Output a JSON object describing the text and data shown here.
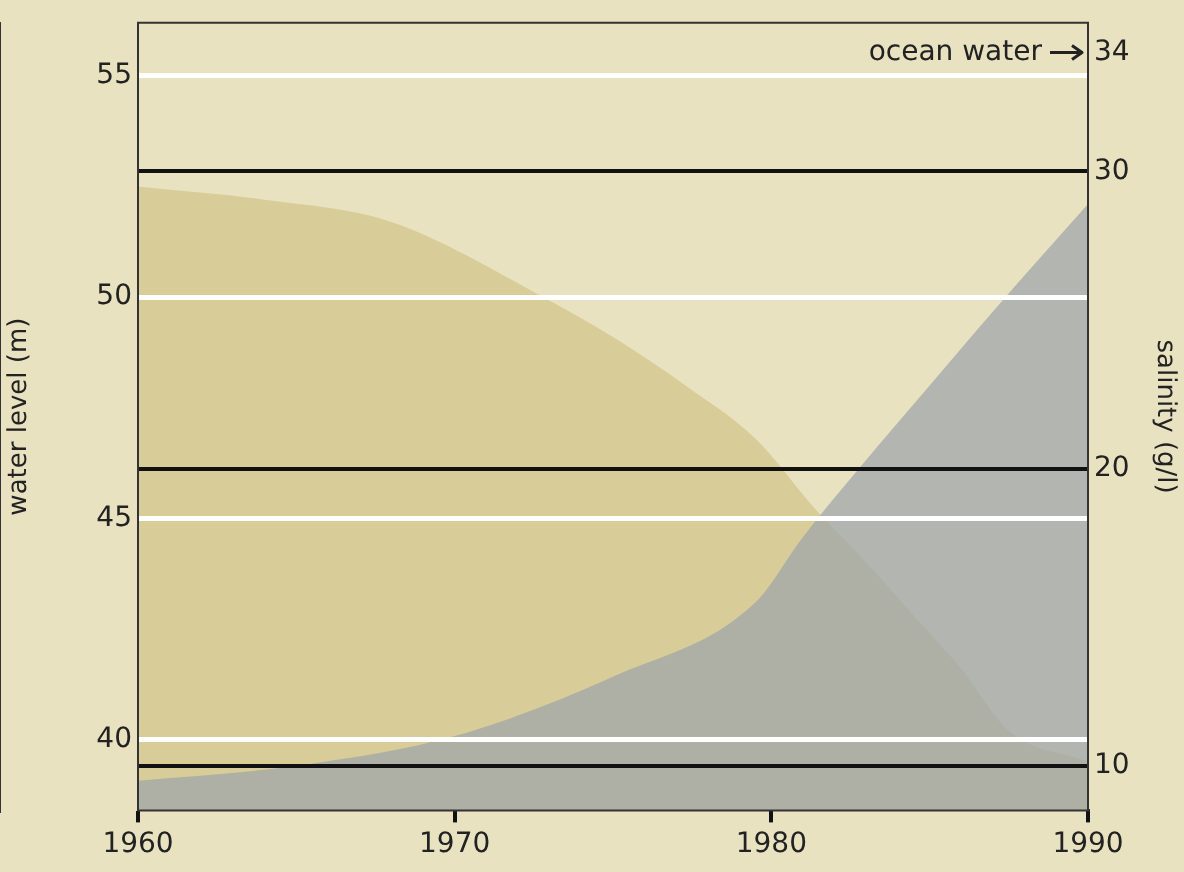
{
  "chart_data": {
    "type": "area",
    "xlabel": null,
    "ylabel": "water level (m)",
    "y2label": "salinity (g/l)",
    "xlim": [
      1960,
      1990
    ],
    "xticks": [
      1960,
      1970,
      1980,
      1990
    ],
    "ylim": [
      38.4,
      56.2
    ],
    "yticks": [
      40,
      45,
      50,
      55
    ],
    "y2lim": [
      8.5,
      35
    ],
    "y2ticks": [
      10,
      20,
      30,
      34
    ],
    "grid": true,
    "legend": false,
    "ref_lines": [
      {
        "axis": "y2",
        "value": 34,
        "label": "ocean water"
      }
    ],
    "series": [
      {
        "color": "#d8cd98",
        "x": [
          1960,
          1964,
          1968,
          1972.8,
          1975,
          1977.3,
          1979.5,
          1981.4,
          1983,
          1984.5,
          1986,
          1987.5,
          1990
        ],
        "values": [
          52.5,
          52.2,
          51.7,
          50,
          49.1,
          48,
          46.8,
          45.2,
          44,
          42.8,
          41.6,
          40.2,
          39.5
        ]
      },
      {
        "axis": "y2",
        "color": "#9ea3ab",
        "x": [
          1960,
          1965,
          1970,
          1975,
          1979.5,
          1981,
          1983,
          1985,
          1987.5,
          1990
        ],
        "values": [
          9.5,
          10,
          11,
          13,
          15.5,
          17.7,
          20.3,
          22.8,
          25.9,
          28.9
        ]
      }
    ]
  }
}
